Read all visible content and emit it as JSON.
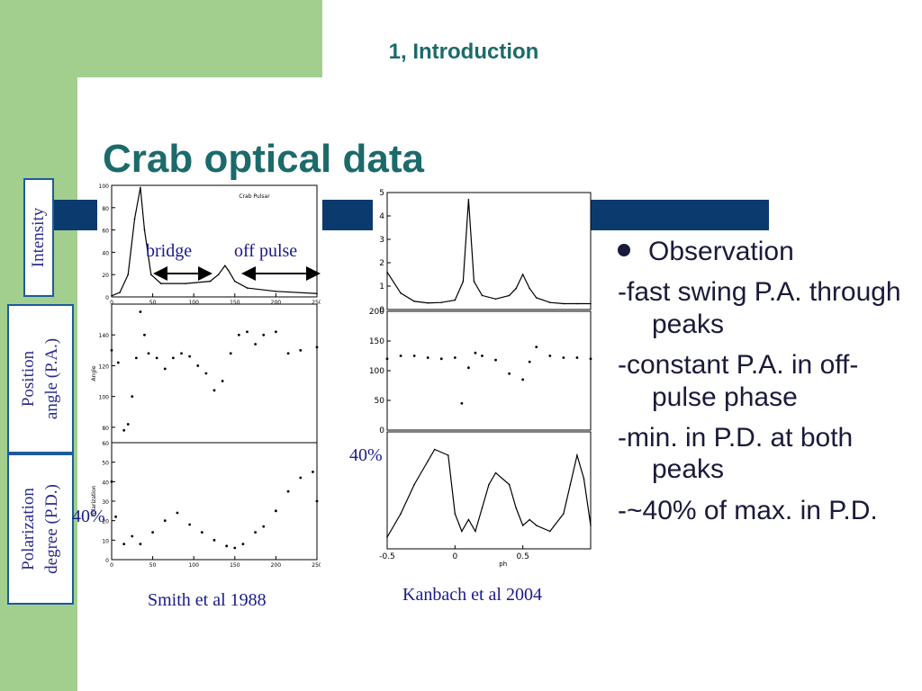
{
  "slide": {
    "section": "1, Introduction",
    "title": "Crab optical data"
  },
  "labels": {
    "intensity": "Intensity",
    "position_angle": [
      "Position",
      "angle (P.A.)"
    ],
    "polarization_degree": [
      "Polarization",
      "degree  (P.D.)"
    ],
    "bridge": "bridge",
    "off_pulse": "off pulse",
    "forty_left": "40%",
    "forty_right": "40%"
  },
  "citations": {
    "left": "Smith et al 1988",
    "right": "Kanbach et al 2004"
  },
  "bullets": [
    {
      "text": "Observation",
      "bullet": true
    },
    {
      "text": "-fast swing P.A. through peaks",
      "bullet": false
    },
    {
      "text": "-constant P.A. in off-pulse phase",
      "bullet": false
    },
    {
      "text": "-min. in P.D. at both peaks",
      "bullet": false
    },
    {
      "text": "-~40% of max. in P.D.",
      "bullet": false
    }
  ],
  "colors": {
    "accent_green": "#a3cf8e",
    "stripe_navy": "#0b3a6e",
    "title_teal": "#1c6a6a",
    "label_blue": "#1a1a8c"
  },
  "chart_data": [
    {
      "type": "line",
      "panel": "Smith et al 1988 - intensity",
      "title": "Crab Pulsar",
      "xlabel": "",
      "ylabel": "",
      "xlim": [
        0,
        250
      ],
      "ylim": [
        0,
        100
      ],
      "xticks": [
        0,
        50,
        100,
        150,
        200,
        250
      ],
      "yticks": [
        0,
        20,
        40,
        60,
        80,
        100
      ],
      "x": [
        0,
        10,
        20,
        28,
        35,
        40,
        48,
        60,
        90,
        120,
        130,
        138,
        142,
        150,
        165,
        200,
        250
      ],
      "y": [
        1,
        4,
        20,
        70,
        98,
        60,
        20,
        12,
        12,
        14,
        20,
        28,
        24,
        14,
        8,
        5,
        3
      ]
    },
    {
      "type": "scatter",
      "panel": "Smith et al 1988 - angle",
      "xlabel": "",
      "ylabel": "Angle",
      "xlim": [
        0,
        250
      ],
      "ylim": [
        70,
        160
      ],
      "yticks": [
        80,
        100,
        120,
        140
      ],
      "x": [
        0,
        8,
        15,
        20,
        25,
        30,
        35,
        40,
        45,
        55,
        65,
        75,
        85,
        95,
        105,
        115,
        125,
        135,
        145,
        155,
        165,
        175,
        185,
        200,
        215,
        230,
        250
      ],
      "y": [
        130,
        122,
        78,
        82,
        100,
        125,
        155,
        140,
        128,
        125,
        118,
        125,
        128,
        126,
        120,
        115,
        104,
        110,
        128,
        140,
        142,
        134,
        140,
        142,
        128,
        130,
        132
      ]
    },
    {
      "type": "scatter",
      "panel": "Smith et al 1988 - polarization",
      "xlabel": "",
      "ylabel": "Polarization",
      "xlim": [
        0,
        250
      ],
      "ylim": [
        0,
        60
      ],
      "xticks": [
        0,
        50,
        100,
        150,
        200,
        250
      ],
      "yticks": [
        0,
        10,
        20,
        30,
        40,
        50,
        60
      ],
      "x": [
        0,
        5,
        15,
        25,
        35,
        50,
        65,
        80,
        95,
        110,
        125,
        140,
        150,
        160,
        175,
        185,
        200,
        215,
        230,
        245,
        250
      ],
      "y": [
        40,
        22,
        8,
        12,
        8,
        14,
        20,
        24,
        18,
        14,
        10,
        7,
        6,
        8,
        14,
        17,
        25,
        35,
        42,
        45,
        30
      ]
    },
    {
      "type": "line",
      "panel": "Kanbach et al 2004 - intensity",
      "xlabel": "",
      "ylabel": "",
      "xlim": [
        -0.5,
        1.0
      ],
      "ylim": [
        0,
        5
      ],
      "yticks": [
        0,
        1,
        2,
        3,
        4,
        5
      ],
      "x": [
        -0.5,
        -0.4,
        -0.3,
        -0.2,
        -0.1,
        0.0,
        0.06,
        0.1,
        0.14,
        0.2,
        0.3,
        0.4,
        0.45,
        0.5,
        0.55,
        0.6,
        0.7,
        0.8,
        0.9,
        1.0
      ],
      "y": [
        1.6,
        0.7,
        0.35,
        0.28,
        0.3,
        0.4,
        1.2,
        4.7,
        1.2,
        0.6,
        0.45,
        0.6,
        0.9,
        1.5,
        0.9,
        0.5,
        0.3,
        0.25,
        0.25,
        0.25
      ]
    },
    {
      "type": "scatter",
      "panel": "Kanbach et al 2004 - angle",
      "xlabel": "",
      "ylabel": "",
      "xlim": [
        -0.5,
        1.0
      ],
      "ylim": [
        0,
        200
      ],
      "yticks": [
        0,
        50,
        100,
        150,
        200
      ],
      "x": [
        -0.5,
        -0.4,
        -0.3,
        -0.2,
        -0.1,
        0.0,
        0.05,
        0.1,
        0.15,
        0.2,
        0.3,
        0.4,
        0.5,
        0.55,
        0.6,
        0.7,
        0.8,
        0.9,
        1.0
      ],
      "y": [
        120,
        125,
        125,
        122,
        120,
        122,
        45,
        105,
        130,
        125,
        118,
        95,
        85,
        115,
        140,
        125,
        122,
        122,
        120
      ]
    },
    {
      "type": "line",
      "panel": "Kanbach et al 2004 - polarization",
      "xlabel": "phase",
      "ylabel": "",
      "xlim": [
        -0.5,
        1.0
      ],
      "ylim": [
        0,
        1
      ],
      "xticks": [
        -0.5,
        0.0,
        0.5
      ],
      "x": [
        -0.5,
        -0.4,
        -0.3,
        -0.2,
        -0.15,
        -0.05,
        0.0,
        0.05,
        0.1,
        0.15,
        0.2,
        0.25,
        0.3,
        0.4,
        0.45,
        0.5,
        0.55,
        0.6,
        0.7,
        0.8,
        0.85,
        0.9,
        0.95,
        1.0
      ],
      "y": [
        0.1,
        0.3,
        0.55,
        0.75,
        0.85,
        0.8,
        0.3,
        0.15,
        0.25,
        0.15,
        0.35,
        0.55,
        0.65,
        0.55,
        0.35,
        0.2,
        0.25,
        0.2,
        0.15,
        0.3,
        0.55,
        0.8,
        0.6,
        0.2
      ]
    }
  ]
}
